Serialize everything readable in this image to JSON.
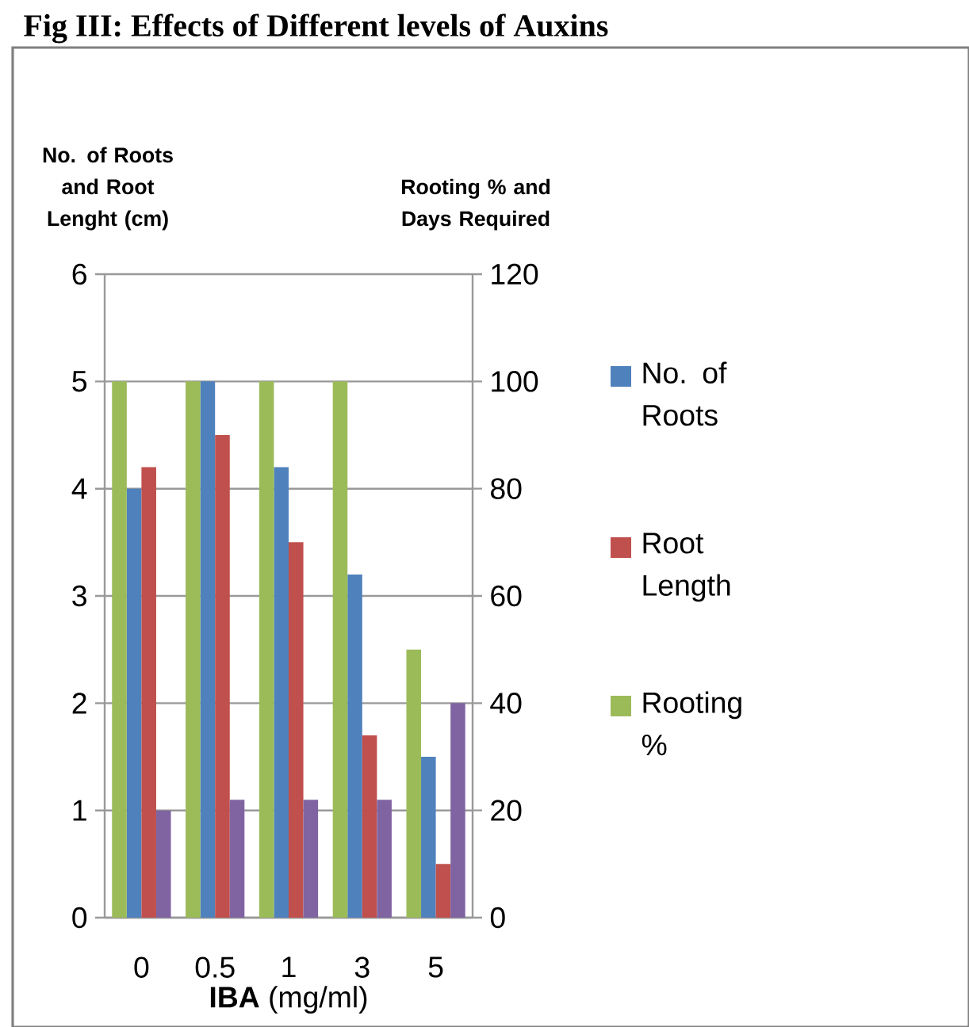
{
  "chart_data": {
    "type": "bar",
    "title": "Fig III: Effects of Different levels of Auxins",
    "xlabel": "**IBA** (mg/ml)",
    "ylabel": "No. of Roots and Root Lenght (cm)",
    "y2label": "Rooting % and Days Required",
    "categories": [
      "0",
      "0.5",
      "1",
      "3",
      "5"
    ],
    "series": [
      {
        "name": "Rooting %",
        "color": "#9bbb59",
        "axis": "y2",
        "values": [
          100,
          100,
          100,
          100,
          50
        ]
      },
      {
        "name": "No. of Roots",
        "color": "#4f81bd",
        "values": [
          4,
          5,
          4.2,
          3.2,
          1.5
        ]
      },
      {
        "name": "Root Length",
        "color": "#c0504d",
        "values": [
          4.2,
          4.5,
          3.5,
          1.7,
          0.5
        ]
      },
      {
        "color": "#8064a2",
        "axis": "y2",
        "values": [
          20,
          22,
          22,
          22,
          40
        ]
      }
    ],
    "ylim": [
      0,
      6
    ],
    "yticks": [
      0,
      1,
      2,
      3,
      4,
      5,
      6
    ],
    "y2lim": [
      0,
      120
    ],
    "y2ticks": [
      0,
      20,
      40,
      60,
      80,
      100,
      120
    ],
    "grid": "y",
    "legend": "right"
  }
}
